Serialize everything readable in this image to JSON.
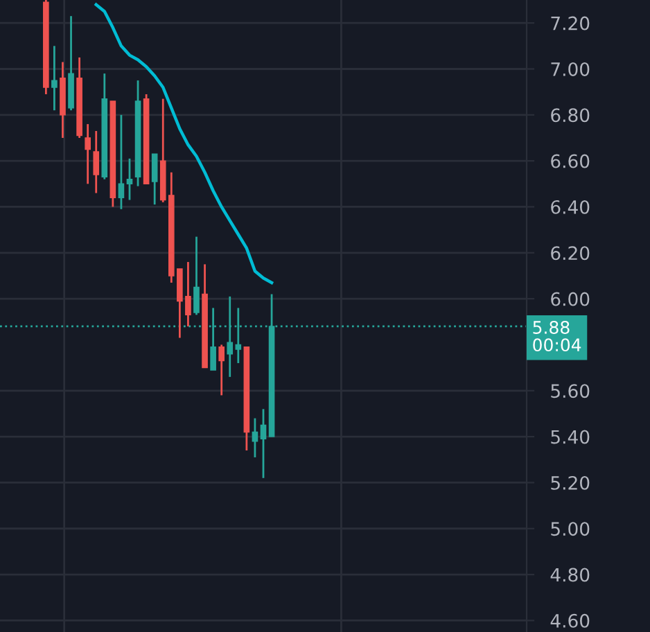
{
  "chart_data": {
    "type": "candlestick",
    "categories": [
      null,
      null,
      null,
      null,
      null,
      null,
      null,
      null,
      null,
      null,
      null,
      null,
      null,
      null,
      null,
      null,
      null,
      null,
      null,
      null,
      null,
      null,
      null,
      null,
      null,
      null,
      null,
      null,
      null,
      null,
      null,
      null,
      null,
      null,
      null,
      null,
      null,
      null,
      null,
      null,
      null,
      null,
      null,
      null,
      null,
      null,
      null,
      null,
      null,
      null,
      null,
      null,
      null,
      null,
      null,
      null,
      null,
      null,
      null,
      null,
      null,
      null,
      null
    ],
    "ohlc": [
      null,
      null,
      null,
      null,
      null,
      [
        7.29,
        7.3,
        6.89,
        6.92
      ],
      [
        6.92,
        7.1,
        6.82,
        6.95
      ],
      [
        6.96,
        7.03,
        6.7,
        6.8
      ],
      [
        6.83,
        7.23,
        6.82,
        6.98
      ],
      [
        6.96,
        7.05,
        6.7,
        6.71
      ],
      [
        6.7,
        6.76,
        6.5,
        6.65
      ],
      [
        6.64,
        6.73,
        6.46,
        6.54
      ],
      [
        6.53,
        6.98,
        6.52,
        6.87
      ],
      [
        6.86,
        6.86,
        6.4,
        6.44
      ],
      [
        6.44,
        6.8,
        6.39,
        6.5
      ],
      [
        6.5,
        6.61,
        6.43,
        6.52
      ],
      [
        6.53,
        6.95,
        6.49,
        6.86
      ],
      [
        6.87,
        6.89,
        6.5,
        6.5
      ],
      [
        6.51,
        6.63,
        6.41,
        6.63
      ],
      [
        6.6,
        6.87,
        6.42,
        6.43
      ],
      [
        6.45,
        6.55,
        6.07,
        6.1
      ],
      [
        6.13,
        6.13,
        5.83,
        5.99
      ],
      [
        6.01,
        6.16,
        5.88,
        5.93
      ],
      [
        5.94,
        6.27,
        5.93,
        6.05
      ],
      [
        6.02,
        6.15,
        5.7,
        5.7
      ],
      [
        5.69,
        5.96,
        5.69,
        5.79
      ],
      [
        5.79,
        5.8,
        5.58,
        5.73
      ],
      [
        5.76,
        6.01,
        5.66,
        5.81
      ],
      [
        5.78,
        5.96,
        5.72,
        5.8
      ],
      [
        5.79,
        5.79,
        5.34,
        5.42
      ],
      [
        5.38,
        5.48,
        5.31,
        5.42
      ],
      [
        5.39,
        5.52,
        5.22,
        5.45
      ],
      [
        5.4,
        6.02,
        5.4,
        5.88
      ],
      null,
      null,
      null,
      null,
      null,
      null,
      null,
      null,
      null,
      null,
      null,
      null,
      null,
      null,
      null,
      null,
      null,
      null,
      null,
      null,
      null,
      null,
      null,
      null,
      null,
      null,
      null,
      null,
      null,
      null
    ],
    "colors": [
      null,
      null,
      null,
      null,
      null,
      "#ef5350",
      "#26a69a",
      "#ef5350",
      "#26a69a",
      "#ef5350",
      "#ef5350",
      "#ef5350",
      "#26a69a",
      "#ef5350",
      "#26a69a",
      "#26a69a",
      "#26a69a",
      "#ef5350",
      "#26a69a",
      "#ef5350",
      "#ef5350",
      "#ef5350",
      "#ef5350",
      "#26a69a",
      "#ef5350",
      "#26a69a",
      "#ef5350",
      "#26a69a",
      "#26a69a",
      "#ef5350",
      "#26a69a",
      "#26a69a",
      "#26a69a",
      null,
      null,
      null,
      null,
      null,
      null,
      null,
      null,
      null,
      null,
      null,
      null,
      null,
      null,
      null,
      null,
      null,
      null,
      null,
      null,
      null,
      null,
      null,
      null,
      null,
      null,
      null,
      null,
      null,
      null
    ],
    "series": [
      {
        "type": "line",
        "color": "#00bcd4",
        "values": [
          null,
          null,
          null,
          null,
          null,
          null,
          null,
          null,
          null,
          null,
          null,
          7.28,
          7.25,
          7.18,
          7.1,
          7.06,
          7.04,
          7.01,
          6.97,
          6.92,
          6.83,
          6.74,
          6.67,
          6.62,
          6.55,
          6.47,
          6.4,
          6.34,
          6.28,
          6.22,
          6.12,
          6.09,
          6.07,
          null,
          null,
          null,
          null,
          null,
          null,
          null,
          null,
          null,
          null,
          null,
          null,
          null,
          null,
          null,
          null,
          null,
          null,
          null,
          null,
          null,
          null,
          null,
          null,
          null,
          null,
          null,
          null,
          null,
          null
        ]
      }
    ],
    "ylim": [
      4.55,
      7.3
    ],
    "yticks": [
      {
        "value": 4.6,
        "label": "4.60"
      },
      {
        "value": 4.8,
        "label": "4.80"
      },
      {
        "value": 5.0,
        "label": "5.00"
      },
      {
        "value": 5.2,
        "label": "5.20"
      },
      {
        "value": 5.4,
        "label": "5.40"
      },
      {
        "value": 5.6,
        "label": "5.60"
      },
      {
        "value": 6.0,
        "label": "6.00"
      },
      {
        "value": 6.2,
        "label": "6.20"
      },
      {
        "value": 6.4,
        "label": "6.40"
      },
      {
        "value": 6.6,
        "label": "6.60"
      },
      {
        "value": 6.8,
        "label": "6.80"
      },
      {
        "value": 7.0,
        "label": "7.00"
      },
      {
        "value": 7.2,
        "label": "7.20"
      }
    ],
    "ref_lines": [
      {
        "axis": "y",
        "value": 5.88,
        "label": "5.88",
        "color": "#26a69a",
        "line_style": "dotted"
      }
    ],
    "annotations": [
      "00:04"
    ],
    "grid": true,
    "tick_labels": "y"
  }
}
